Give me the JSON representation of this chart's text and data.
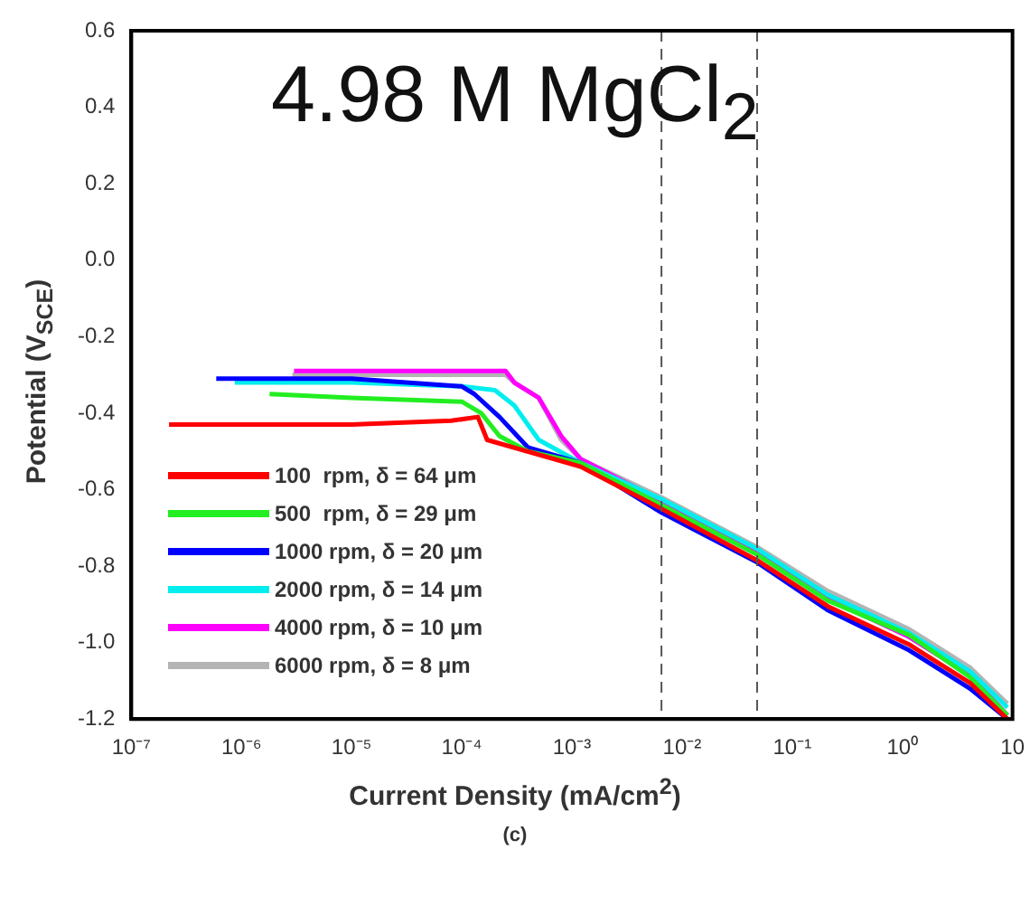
{
  "chart_data": {
    "type": "line",
    "title": "4.98 M MgCl$_{2}$",
    "xlabel": "Current Density (mA/cm$^{2}$)",
    "ylabel": "Potential (V$_{SCE}$)",
    "annotations": [
      "(c)"
    ],
    "log": "x",
    "legend": "bottom left",
    "grid": false,
    "marker": "none",
    "line_style": "solid",
    "xlim": [
      1e-07,
      10
    ],
    "xticks": [
      {
        "value": 1e-07,
        "label": "10⁻⁷"
      },
      {
        "value": 1e-06,
        "label": "10⁻⁶"
      },
      {
        "value": 1e-05,
        "label": "10⁻⁵"
      },
      {
        "value": 0.0001,
        "label": "10⁻⁴"
      },
      {
        "value": 0.001,
        "label": "10⁻³"
      },
      {
        "value": 0.01,
        "label": "10⁻²"
      },
      {
        "value": 0.1,
        "label": "10⁻¹"
      },
      {
        "value": 1,
        "label": "10⁰"
      },
      {
        "value": 10,
        "label": "10"
      }
    ],
    "ylim": [
      -1.2,
      0.6
    ],
    "yticks": [
      {
        "value": -1.2,
        "label": "-1.2"
      },
      {
        "value": -1,
        "label": "-1.0"
      },
      {
        "value": -0.8,
        "label": "-0.8"
      },
      {
        "value": -0.6,
        "label": "-0.6"
      },
      {
        "value": -0.4,
        "label": "-0.4"
      },
      {
        "value": -0.2,
        "label": "-0.2"
      },
      {
        "value": 0,
        "label": "0.0"
      },
      {
        "value": 0.2,
        "label": "0.2"
      },
      {
        "value": 0.4,
        "label": "0.4"
      },
      {
        "value": 0.6,
        "label": "0.6"
      }
    ],
    "ref_lines": [
      {
        "axis": "x",
        "value": 0.0065,
        "color": "#555555",
        "line_style": "dashed"
      },
      {
        "axis": "x",
        "value": 0.048,
        "color": "#555555",
        "line_style": "dashed"
      }
    ],
    "series": [
      {
        "name": "100  rpm, δ = 64 μm",
        "color": "#ff0000",
        "x": [
          2.2e-07,
          1e-05,
          8e-05,
          0.00014,
          0.00017,
          0.0012,
          0.0065,
          0.048,
          0.21,
          1.15,
          4.1,
          9
        ],
        "values": [
          -0.43,
          -0.43,
          -0.42,
          -0.41,
          -0.47,
          -0.54,
          -0.65,
          -0.785,
          -0.905,
          -1.005,
          -1.105,
          -1.2
        ]
      },
      {
        "name": "500  rpm, δ = 29 μm",
        "color": "#22ee22",
        "x": [
          1.8e-06,
          1e-05,
          0.0001,
          0.00015,
          0.00022,
          0.0004,
          0.0012,
          0.0065,
          0.048,
          0.21,
          1.15,
          4.1,
          9
        ],
        "values": [
          -0.35,
          -0.36,
          -0.37,
          -0.4,
          -0.46,
          -0.5,
          -0.53,
          -0.64,
          -0.77,
          -0.89,
          -0.98,
          -1.09,
          -1.19
        ]
      },
      {
        "name": "1000 rpm, δ = 20 μm",
        "color": "#0000ff",
        "x": [
          5.9e-07,
          1e-05,
          0.0001,
          0.00013,
          0.00022,
          0.0004,
          0.0012,
          0.0065,
          0.048,
          0.21,
          1.15,
          4.1,
          9
        ],
        "values": [
          -0.31,
          -0.31,
          -0.33,
          -0.35,
          -0.41,
          -0.49,
          -0.53,
          -0.66,
          -0.79,
          -0.915,
          -1.02,
          -1.12,
          -1.2
        ]
      },
      {
        "name": "2000 rpm, δ = 14 μm",
        "color": "#00eeee",
        "x": [
          8.7e-07,
          1e-05,
          0.0001,
          0.0002,
          0.0003,
          0.0005,
          0.0012,
          0.0065,
          0.048,
          0.21,
          1.15,
          4.1,
          9
        ],
        "values": [
          -0.32,
          -0.32,
          -0.33,
          -0.34,
          -0.38,
          -0.47,
          -0.53,
          -0.625,
          -0.755,
          -0.875,
          -0.975,
          -1.075,
          -1.17
        ]
      },
      {
        "name": "4000 rpm, δ = 10 μm",
        "color": "#ff00ff",
        "x": [
          3e-06,
          1e-05,
          0.0001,
          0.00025,
          0.0003,
          0.0005,
          0.0008,
          0.0012,
          0.0065,
          0.048,
          0.21,
          1.15,
          4.1,
          9
        ],
        "values": [
          -0.29,
          -0.29,
          -0.29,
          -0.29,
          -0.32,
          -0.36,
          -0.46,
          -0.52,
          -0.63,
          -0.765,
          -0.885,
          -0.985,
          -1.085,
          -1.19
        ]
      },
      {
        "name": "6000 rpm, δ = 8 μm",
        "color": "#b4b4b4",
        "x": [
          2.9e-06,
          1e-05,
          0.0001,
          0.00025,
          0.0003,
          0.0005,
          0.0008,
          0.0012,
          0.0065,
          0.048,
          0.21,
          1.15,
          4.1,
          9
        ],
        "values": [
          -0.3,
          -0.3,
          -0.3,
          -0.3,
          -0.32,
          -0.36,
          -0.47,
          -0.52,
          -0.62,
          -0.75,
          -0.865,
          -0.965,
          -1.065,
          -1.16
        ]
      }
    ]
  }
}
